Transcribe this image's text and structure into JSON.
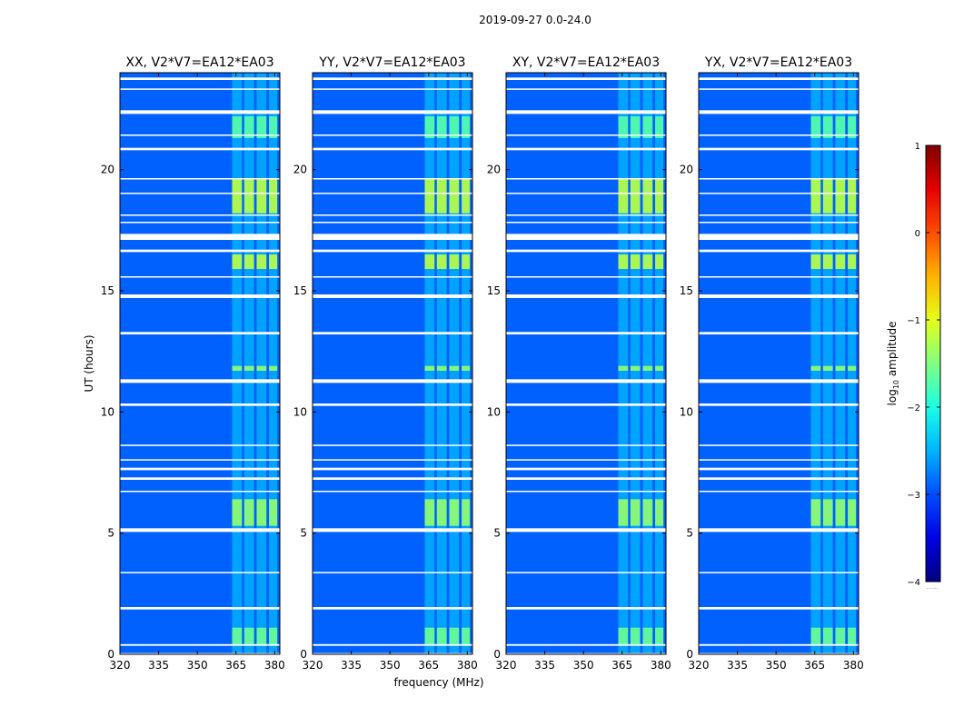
{
  "chart_data": {
    "type": "heatmap",
    "suptitle": "2019-09-27 0.0-24.0",
    "xlabel": "frequency (MHz)",
    "ylabel": "UT (hours)",
    "xlim": [
      320,
      382
    ],
    "ylim": [
      0,
      24
    ],
    "xticks": [
      320,
      335,
      350,
      365,
      380
    ],
    "yticks": [
      0,
      5,
      10,
      15,
      20
    ],
    "colorbar": {
      "label_main": "log",
      "label_sub": "10",
      "label_rest": " amplitude",
      "range": [
        -4,
        1
      ],
      "ticks": [
        -4,
        -3,
        -2,
        -1,
        0,
        1
      ],
      "tick_labels": [
        "−4",
        "−3",
        "−2",
        "−1",
        "0",
        "1"
      ],
      "footnote": "......",
      "colormap": "jet"
    },
    "panels": [
      {
        "title": "XX, V2*V7=EA12*EA03"
      },
      {
        "title": "YY, V2*V7=EA12*EA03"
      },
      {
        "title": "XY, V2*V7=EA12*EA03"
      },
      {
        "title": "YX, V2*V7=EA12*EA03"
      }
    ],
    "background_level": -2.9,
    "rfi_bands_mhz": [
      [
        363.5,
        367.3
      ],
      [
        368.2,
        372.0
      ],
      [
        373.0,
        376.8
      ],
      [
        377.8,
        381.0
      ]
    ],
    "flagged_time_ranges_hours": [
      [
        0.0,
        0.05
      ],
      [
        0.35,
        0.42
      ],
      [
        1.85,
        1.95
      ],
      [
        3.35,
        3.4
      ],
      [
        5.05,
        5.2
      ],
      [
        6.7,
        6.75
      ],
      [
        7.2,
        7.3
      ],
      [
        7.6,
        7.7
      ],
      [
        8.0,
        8.05
      ],
      [
        8.6,
        8.65
      ],
      [
        10.25,
        10.35
      ],
      [
        11.2,
        11.35
      ],
      [
        13.2,
        13.3
      ],
      [
        14.7,
        14.85
      ],
      [
        15.55,
        15.6
      ],
      [
        16.6,
        16.7
      ],
      [
        17.1,
        17.35
      ],
      [
        17.8,
        17.85
      ],
      [
        18.1,
        18.15
      ],
      [
        19.0,
        19.05
      ],
      [
        19.6,
        19.65
      ],
      [
        20.8,
        20.9
      ],
      [
        21.4,
        21.45
      ],
      [
        22.3,
        22.45
      ],
      [
        23.3,
        23.35
      ],
      [
        23.7,
        23.8
      ]
    ],
    "bright_events_hours": [
      {
        "t0": 18.2,
        "t1": 19.6,
        "level": -1.2
      },
      {
        "t0": 21.3,
        "t1": 22.2,
        "level": -1.7
      },
      {
        "t0": 15.9,
        "t1": 16.5,
        "level": -1.2
      },
      {
        "t0": 11.7,
        "t1": 11.9,
        "level": -1.4
      },
      {
        "t0": 5.3,
        "t1": 6.4,
        "level": -1.4
      },
      {
        "t0": 0.4,
        "t1": 1.1,
        "level": -1.6
      }
    ]
  }
}
